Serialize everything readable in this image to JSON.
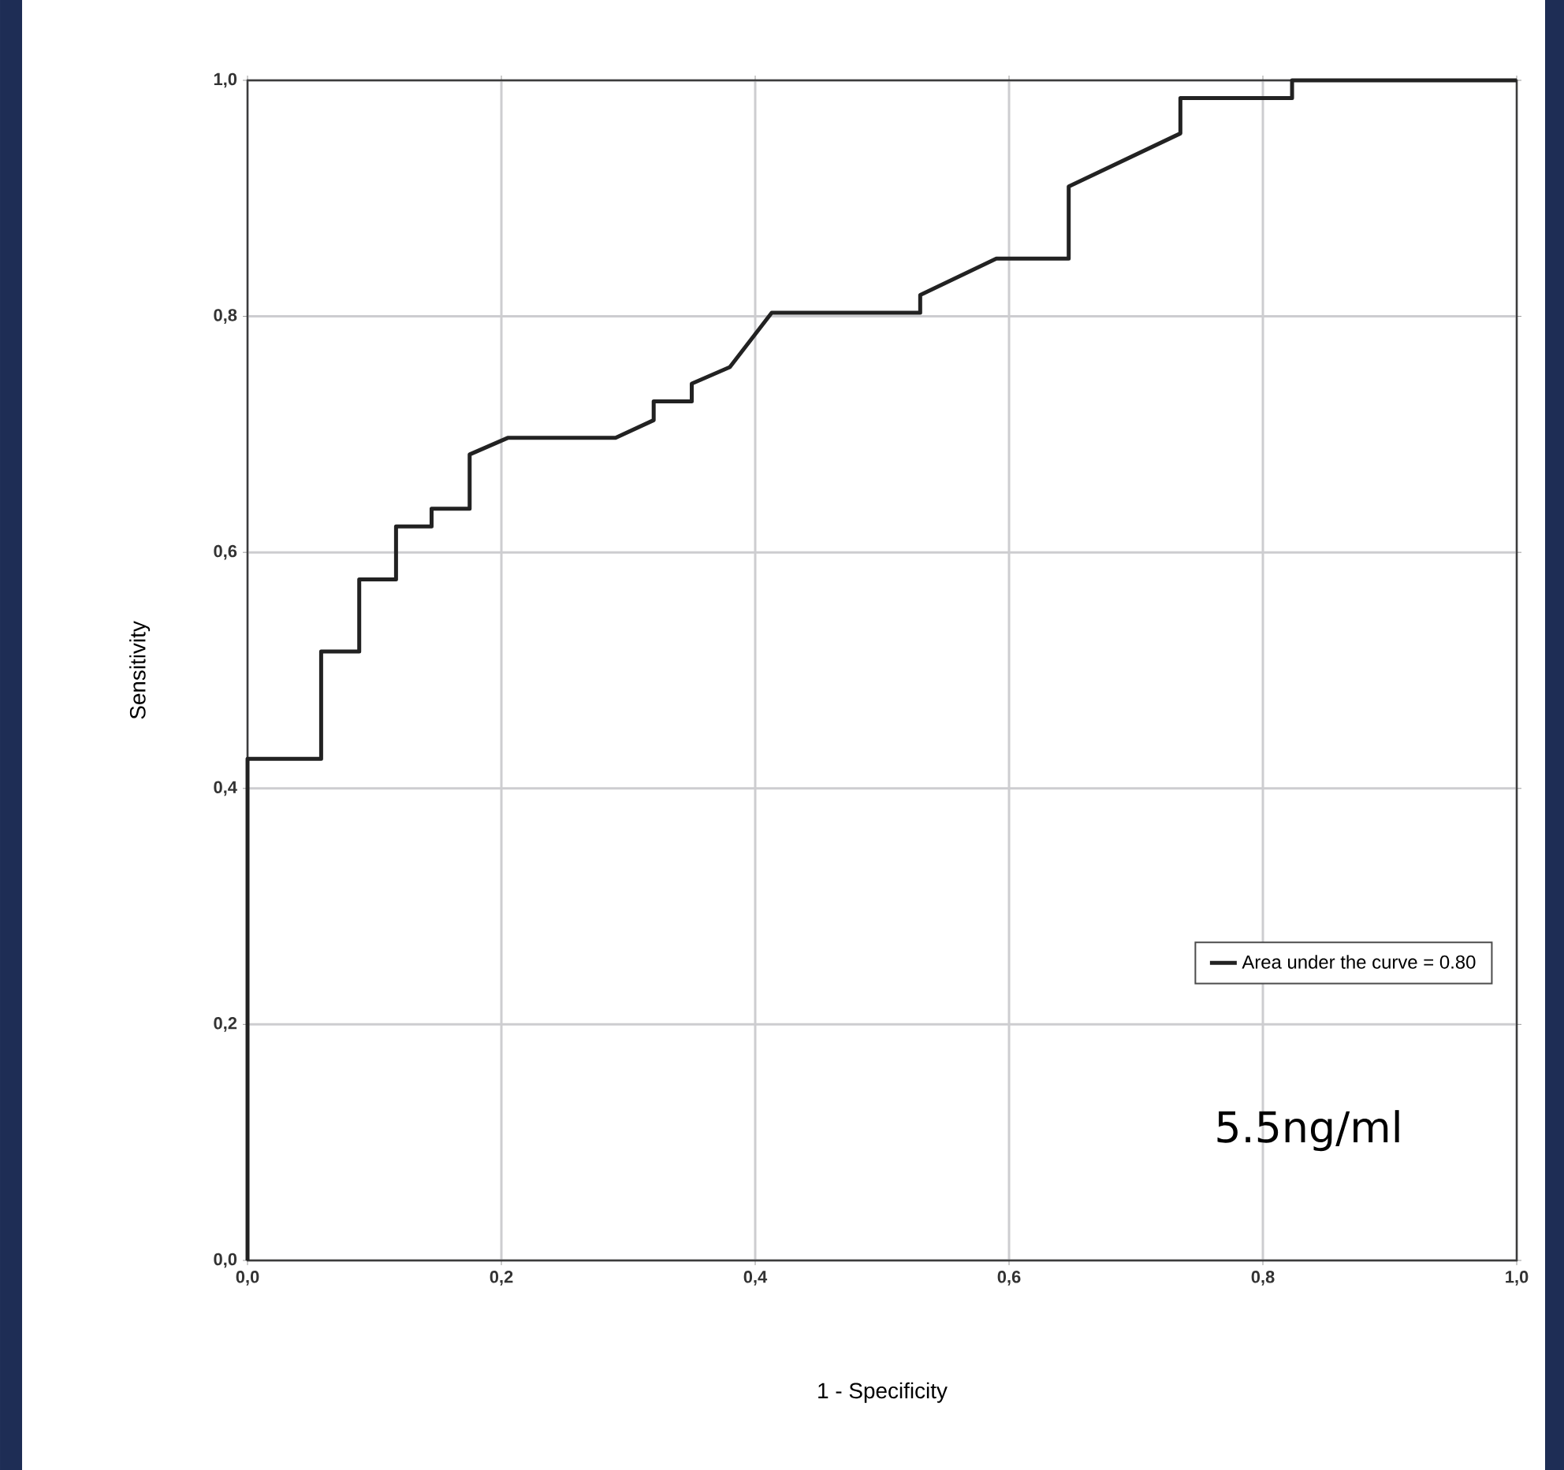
{
  "chart_data": {
    "type": "line",
    "xlabel": "1 - Specificity",
    "ylabel": "Sensitivity",
    "xlim": [
      0,
      1
    ],
    "ylim": [
      0,
      1
    ],
    "xticks": [
      {
        "value": 0,
        "label": "0,0"
      },
      {
        "value": 0.2,
        "label": "0,2"
      },
      {
        "value": 0.4,
        "label": "0,4"
      },
      {
        "value": 0.6,
        "label": "0,6"
      },
      {
        "value": 0.8,
        "label": "0,8"
      },
      {
        "value": 1,
        "label": "1,0"
      }
    ],
    "yticks": [
      {
        "value": 0,
        "label": "0,0"
      },
      {
        "value": 0.2,
        "label": "0,2"
      },
      {
        "value": 0.4,
        "label": "0,4"
      },
      {
        "value": 0.6,
        "label": "0,6"
      },
      {
        "value": 0.8,
        "label": "0,8"
      },
      {
        "value": 1,
        "label": "1,0"
      }
    ],
    "grid": true,
    "legend": "bottom right",
    "marker": "none",
    "line_style": "solid",
    "series": [
      {
        "name": "Area under the curve = 0.80",
        "color": "#222222",
        "x": [
          0,
          0,
          0.058,
          0.058,
          0.088,
          0.088,
          0.117,
          0.117,
          0.145,
          0.145,
          0.175,
          0.175,
          0.205,
          0.29,
          0.32,
          0.32,
          0.35,
          0.35,
          0.38,
          0.413,
          0.53,
          0.53,
          0.59,
          0.647,
          0.647,
          0.735,
          0.735,
          0.823,
          0.823,
          1
        ],
        "values": [
          0,
          0.425,
          0.425,
          0.516,
          0.516,
          0.577,
          0.577,
          0.622,
          0.622,
          0.637,
          0.637,
          0.683,
          0.697,
          0.697,
          0.712,
          0.728,
          0.728,
          0.743,
          0.757,
          0.803,
          0.803,
          0.818,
          0.849,
          0.849,
          0.91,
          0.955,
          0.985,
          0.985,
          1,
          1
        ]
      }
    ],
    "annotations": [
      "5.5ng/ml"
    ]
  }
}
